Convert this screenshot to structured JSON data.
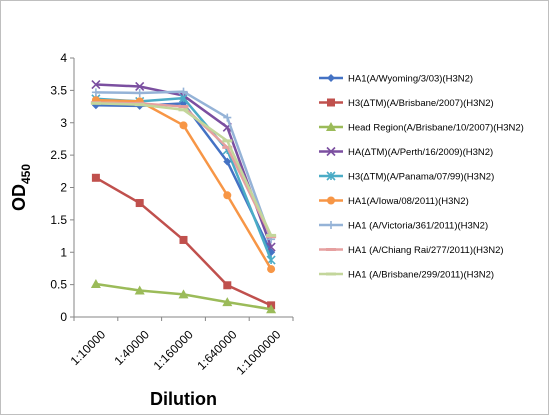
{
  "chart_data": {
    "type": "line",
    "title": "",
    "xlabel": "Dilution",
    "ylabel_main": "OD",
    "ylabel_sub": "450",
    "ylim": [
      0,
      4
    ],
    "yticks": [
      "0",
      "0.5",
      "1",
      "1.5",
      "2",
      "2.5",
      "3",
      "3.5",
      "4"
    ],
    "categories": [
      "1:10000",
      "1:40000",
      "1:160000",
      "1:640000",
      "1:1000000"
    ],
    "grid": false,
    "legend_position": "right",
    "series": [
      {
        "name": "HA1(A/Wyoming/3/03)(H3N2)",
        "color": "#4472c4",
        "marker": "diamond",
        "values": [
          3.27,
          3.26,
          3.3,
          2.4,
          1.0
        ]
      },
      {
        "name": "H3(ΔTM)(A/Brisbane/2007)(H3N2)",
        "color": "#c0504d",
        "marker": "square",
        "values": [
          2.15,
          1.76,
          1.19,
          0.49,
          0.18
        ]
      },
      {
        "name": "Head Region(A/Brisbane/10/2007)(H3N2)",
        "color": "#9bbb59",
        "marker": "triangle",
        "values": [
          0.51,
          0.41,
          0.35,
          0.23,
          0.12
        ]
      },
      {
        "name": "HA(ΔTM)(A/Perth/16/2009)(H3N2)",
        "color": "#7b4fa0",
        "marker": "x",
        "values": [
          3.59,
          3.56,
          3.42,
          2.93,
          1.08
        ]
      },
      {
        "name": "H3(ΔTM)(A/Panama/07/99)(H3N2)",
        "color": "#4bacc6",
        "marker": "star",
        "values": [
          3.37,
          3.33,
          3.38,
          2.58,
          0.88
        ]
      },
      {
        "name": "HA1(A/Iowa/08/2011)(H3N2)",
        "color": "#f79646",
        "marker": "circle",
        "values": [
          3.35,
          3.33,
          2.96,
          1.88,
          0.74
        ]
      },
      {
        "name": "HA1 (A/Victoria/361/2011)(H3N2)",
        "color": "#95b3d7",
        "marker": "plus",
        "values": [
          3.47,
          3.46,
          3.48,
          3.08,
          1.2
        ]
      },
      {
        "name": "HA1 (A/Chiang Rai/277/2011)(H3N2)",
        "color": "#e6a0a0",
        "marker": "line",
        "values": [
          3.31,
          3.3,
          3.25,
          2.62,
          1.24
        ]
      },
      {
        "name": "HA1 (A/Brisbane/299/2011)(H3N2)",
        "color": "#c3d69b",
        "marker": "line",
        "values": [
          3.3,
          3.28,
          3.2,
          2.72,
          1.26
        ]
      }
    ]
  }
}
